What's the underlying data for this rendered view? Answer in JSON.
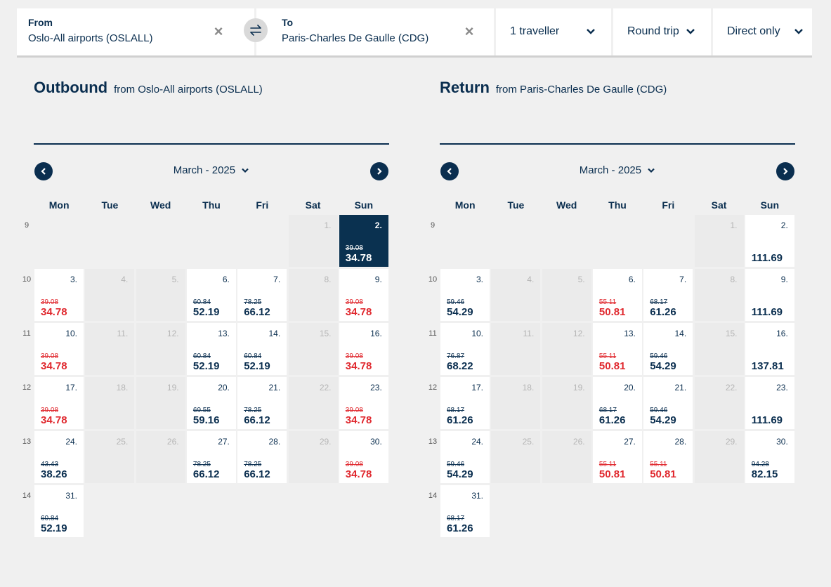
{
  "search": {
    "from_label": "From",
    "from_value": "Oslo-All airports (OSLALL)",
    "to_label": "To",
    "to_value": "Paris-Charles De Gaulle (CDG)",
    "travellers": "1 traveller",
    "trip_type": "Round trip",
    "stops": "Direct only",
    "clear_symbol": "×"
  },
  "weekdays": [
    "Mon",
    "Tue",
    "Wed",
    "Thu",
    "Fri",
    "Sat",
    "Sun"
  ],
  "week_numbers": [
    "9",
    "10",
    "11",
    "12",
    "13",
    "14"
  ],
  "outbound": {
    "title": "Outbound",
    "subtitle": "from Oslo-All airports (OSLALL)",
    "month": "March - 2025",
    "days": [
      {
        "day": "1.",
        "state": "unavail"
      },
      {
        "day": "2.",
        "state": "selected",
        "old": "39.08",
        "price": "34.78"
      },
      {
        "day": "3.",
        "state": "priced",
        "red": true,
        "old": "39.08",
        "price": "34.78"
      },
      {
        "day": "4.",
        "state": "unavail"
      },
      {
        "day": "5.",
        "state": "unavail"
      },
      {
        "day": "6.",
        "state": "priced",
        "old": "60.84",
        "price": "52.19"
      },
      {
        "day": "7.",
        "state": "priced",
        "old": "78.25",
        "price": "66.12"
      },
      {
        "day": "8.",
        "state": "unavail"
      },
      {
        "day": "9.",
        "state": "priced",
        "red": true,
        "old": "39.08",
        "price": "34.78"
      },
      {
        "day": "10.",
        "state": "priced",
        "red": true,
        "old": "39.08",
        "price": "34.78"
      },
      {
        "day": "11.",
        "state": "unavail"
      },
      {
        "day": "12.",
        "state": "unavail"
      },
      {
        "day": "13.",
        "state": "priced",
        "old": "60.84",
        "price": "52.19"
      },
      {
        "day": "14.",
        "state": "priced",
        "old": "60.84",
        "price": "52.19"
      },
      {
        "day": "15.",
        "state": "unavail"
      },
      {
        "day": "16.",
        "state": "priced",
        "red": true,
        "old": "39.08",
        "price": "34.78"
      },
      {
        "day": "17.",
        "state": "priced",
        "red": true,
        "old": "39.08",
        "price": "34.78"
      },
      {
        "day": "18.",
        "state": "unavail"
      },
      {
        "day": "19.",
        "state": "unavail"
      },
      {
        "day": "20.",
        "state": "priced",
        "old": "69.55",
        "price": "59.16"
      },
      {
        "day": "21.",
        "state": "priced",
        "old": "78.25",
        "price": "66.12"
      },
      {
        "day": "22.",
        "state": "unavail"
      },
      {
        "day": "23.",
        "state": "priced",
        "red": true,
        "old": "39.08",
        "price": "34.78"
      },
      {
        "day": "24.",
        "state": "priced",
        "old": "43.43",
        "price": "38.26"
      },
      {
        "day": "25.",
        "state": "unavail"
      },
      {
        "day": "26.",
        "state": "unavail"
      },
      {
        "day": "27.",
        "state": "priced",
        "old": "78.25",
        "price": "66.12"
      },
      {
        "day": "28.",
        "state": "priced",
        "old": "78.25",
        "price": "66.12"
      },
      {
        "day": "29.",
        "state": "unavail"
      },
      {
        "day": "30.",
        "state": "priced",
        "red": true,
        "old": "39.08",
        "price": "34.78"
      },
      {
        "day": "31.",
        "state": "priced",
        "old": "60.84",
        "price": "52.19"
      }
    ]
  },
  "return": {
    "title": "Return",
    "subtitle": "from Paris-Charles De Gaulle (CDG)",
    "month": "March - 2025",
    "days": [
      {
        "day": "1.",
        "state": "unavail"
      },
      {
        "day": "2.",
        "state": "priced",
        "price": "111.69"
      },
      {
        "day": "3.",
        "state": "priced",
        "old": "59.46",
        "price": "54.29"
      },
      {
        "day": "4.",
        "state": "unavail"
      },
      {
        "day": "5.",
        "state": "unavail"
      },
      {
        "day": "6.",
        "state": "priced",
        "red": true,
        "old": "55.11",
        "price": "50.81"
      },
      {
        "day": "7.",
        "state": "priced",
        "old": "68.17",
        "price": "61.26"
      },
      {
        "day": "8.",
        "state": "unavail"
      },
      {
        "day": "9.",
        "state": "priced",
        "price": "111.69"
      },
      {
        "day": "10.",
        "state": "priced",
        "old": "76.87",
        "price": "68.22"
      },
      {
        "day": "11.",
        "state": "unavail"
      },
      {
        "day": "12.",
        "state": "unavail"
      },
      {
        "day": "13.",
        "state": "priced",
        "red": true,
        "old": "55.11",
        "price": "50.81"
      },
      {
        "day": "14.",
        "state": "priced",
        "old": "59.46",
        "price": "54.29"
      },
      {
        "day": "15.",
        "state": "unavail"
      },
      {
        "day": "16.",
        "state": "priced",
        "price": "137.81"
      },
      {
        "day": "17.",
        "state": "priced",
        "old": "68.17",
        "price": "61.26"
      },
      {
        "day": "18.",
        "state": "unavail"
      },
      {
        "day": "19.",
        "state": "unavail"
      },
      {
        "day": "20.",
        "state": "priced",
        "old": "68.17",
        "price": "61.26"
      },
      {
        "day": "21.",
        "state": "priced",
        "old": "59.46",
        "price": "54.29"
      },
      {
        "day": "22.",
        "state": "unavail"
      },
      {
        "day": "23.",
        "state": "priced",
        "price": "111.69"
      },
      {
        "day": "24.",
        "state": "priced",
        "old": "59.46",
        "price": "54.29"
      },
      {
        "day": "25.",
        "state": "unavail"
      },
      {
        "day": "26.",
        "state": "unavail"
      },
      {
        "day": "27.",
        "state": "priced",
        "red": true,
        "old": "55.11",
        "price": "50.81"
      },
      {
        "day": "28.",
        "state": "priced",
        "red": true,
        "old": "55.11",
        "price": "50.81"
      },
      {
        "day": "29.",
        "state": "unavail"
      },
      {
        "day": "30.",
        "state": "priced",
        "old": "94.28",
        "price": "82.15"
      },
      {
        "day": "31.",
        "state": "priced",
        "old": "68.17",
        "price": "61.26"
      }
    ]
  },
  "colors": {
    "navy": "#0a2e4f",
    "sale_red": "#e0282e",
    "selected_bg": "#0a3150"
  }
}
